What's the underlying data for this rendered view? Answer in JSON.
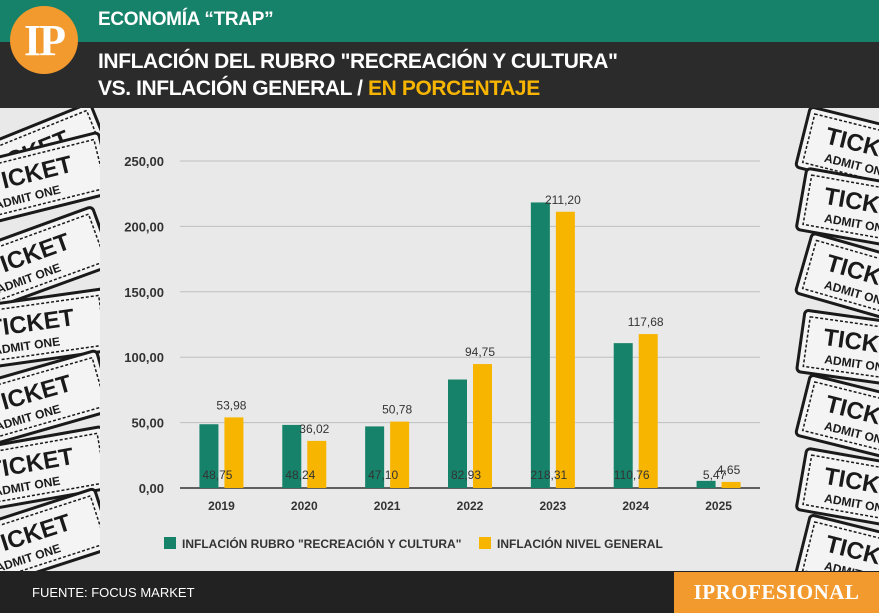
{
  "header": {
    "logo": "IP",
    "section": "ECONOMÍA “TRAP”",
    "title_line1": "INFLACIÓN DEL RUBRO \"RECREACIÓN Y CULTURA\"",
    "title_line2_prefix": "VS. INFLACIÓN GENERAL /",
    "title_line2_highlight": "EN PORCENTAJE"
  },
  "footer": {
    "source": "FUENTE: FOCUS MARKET",
    "brand": "IPROFESIONAL"
  },
  "decoration": {
    "ticket_text": "TICKET",
    "ticket_sub": "ADMIT ONE"
  },
  "colors": {
    "green": "#17826a",
    "yellow": "#f7b500",
    "accent": "#f29a2e"
  },
  "chart_data": {
    "type": "bar",
    "categories": [
      "2019",
      "2020",
      "2021",
      "2022",
      "2023",
      "2024",
      "2025"
    ],
    "series": [
      {
        "name": "INFLACIÓN RUBRO \"RECREACIÓN Y CULTURA\"",
        "color": "#17826a",
        "values": [
          48.75,
          48.24,
          47.1,
          82.93,
          218.31,
          110.76,
          5.47
        ],
        "labels": [
          "48,75",
          "48,24",
          "47,10",
          "82,93",
          "218,31",
          "110,76",
          "5,47"
        ]
      },
      {
        "name": "INFLACIÓN NIVEL GENERAL",
        "color": "#f7b500",
        "values": [
          53.98,
          36.02,
          50.78,
          94.75,
          211.2,
          117.68,
          4.65
        ],
        "labels": [
          "53,98",
          "36,02",
          "50,78",
          "94,75",
          "211,20",
          "117,68",
          "4,65"
        ]
      }
    ],
    "yticks": [
      "0,00",
      "50,00",
      "100,00",
      "150,00",
      "200,00",
      "250,00"
    ],
    "ylim": [
      0,
      250
    ],
    "grid": true,
    "legend": "bottom"
  }
}
